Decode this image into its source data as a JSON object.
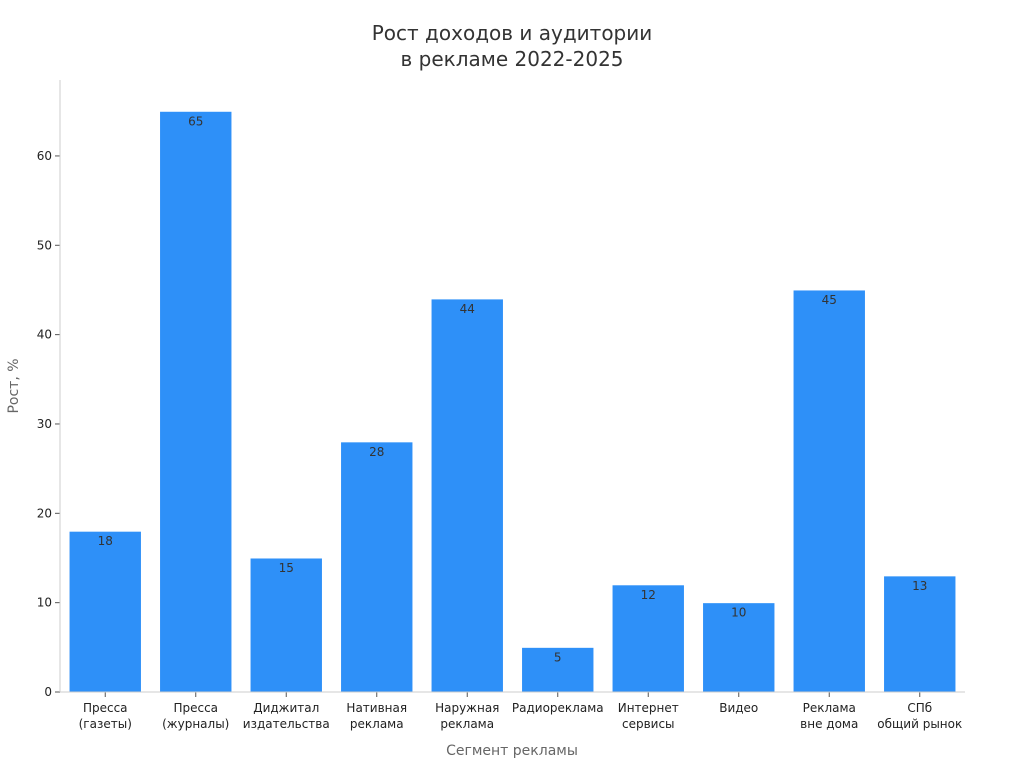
{
  "chart_data": {
    "type": "bar",
    "title": [
      "Рост доходов и аудитории",
      "в рекламе 2022-2025"
    ],
    "xlabel": "Сегмент рекламы",
    "ylabel": "Рост, %",
    "categories": [
      [
        "Пресса",
        "(газеты)"
      ],
      [
        "Пресса",
        "(журналы)"
      ],
      [
        "Диджитал",
        "издательства"
      ],
      [
        "Нативная",
        "реклама"
      ],
      [
        "Наружная",
        "реклама"
      ],
      [
        "Радиореклама"
      ],
      [
        "Интернет",
        "сервисы"
      ],
      [
        "Видео"
      ],
      [
        "Реклама",
        "вне дома"
      ],
      [
        "СПб",
        "общий рынок"
      ]
    ],
    "values": [
      18,
      65,
      15,
      28,
      44,
      5,
      12,
      10,
      45,
      13
    ],
    "data_labels": [
      "18",
      "65",
      "15",
      "28",
      "44",
      "5",
      "12",
      "10",
      "45",
      "13"
    ],
    "yticks": [
      0,
      10,
      20,
      30,
      40,
      50,
      60
    ],
    "ylim": [
      0,
      68.5
    ],
    "grid": false,
    "legend": "none",
    "colors": {
      "bar": "#2e90f8",
      "bar_edge": "#ffffff",
      "axis": "#cccccc"
    }
  }
}
